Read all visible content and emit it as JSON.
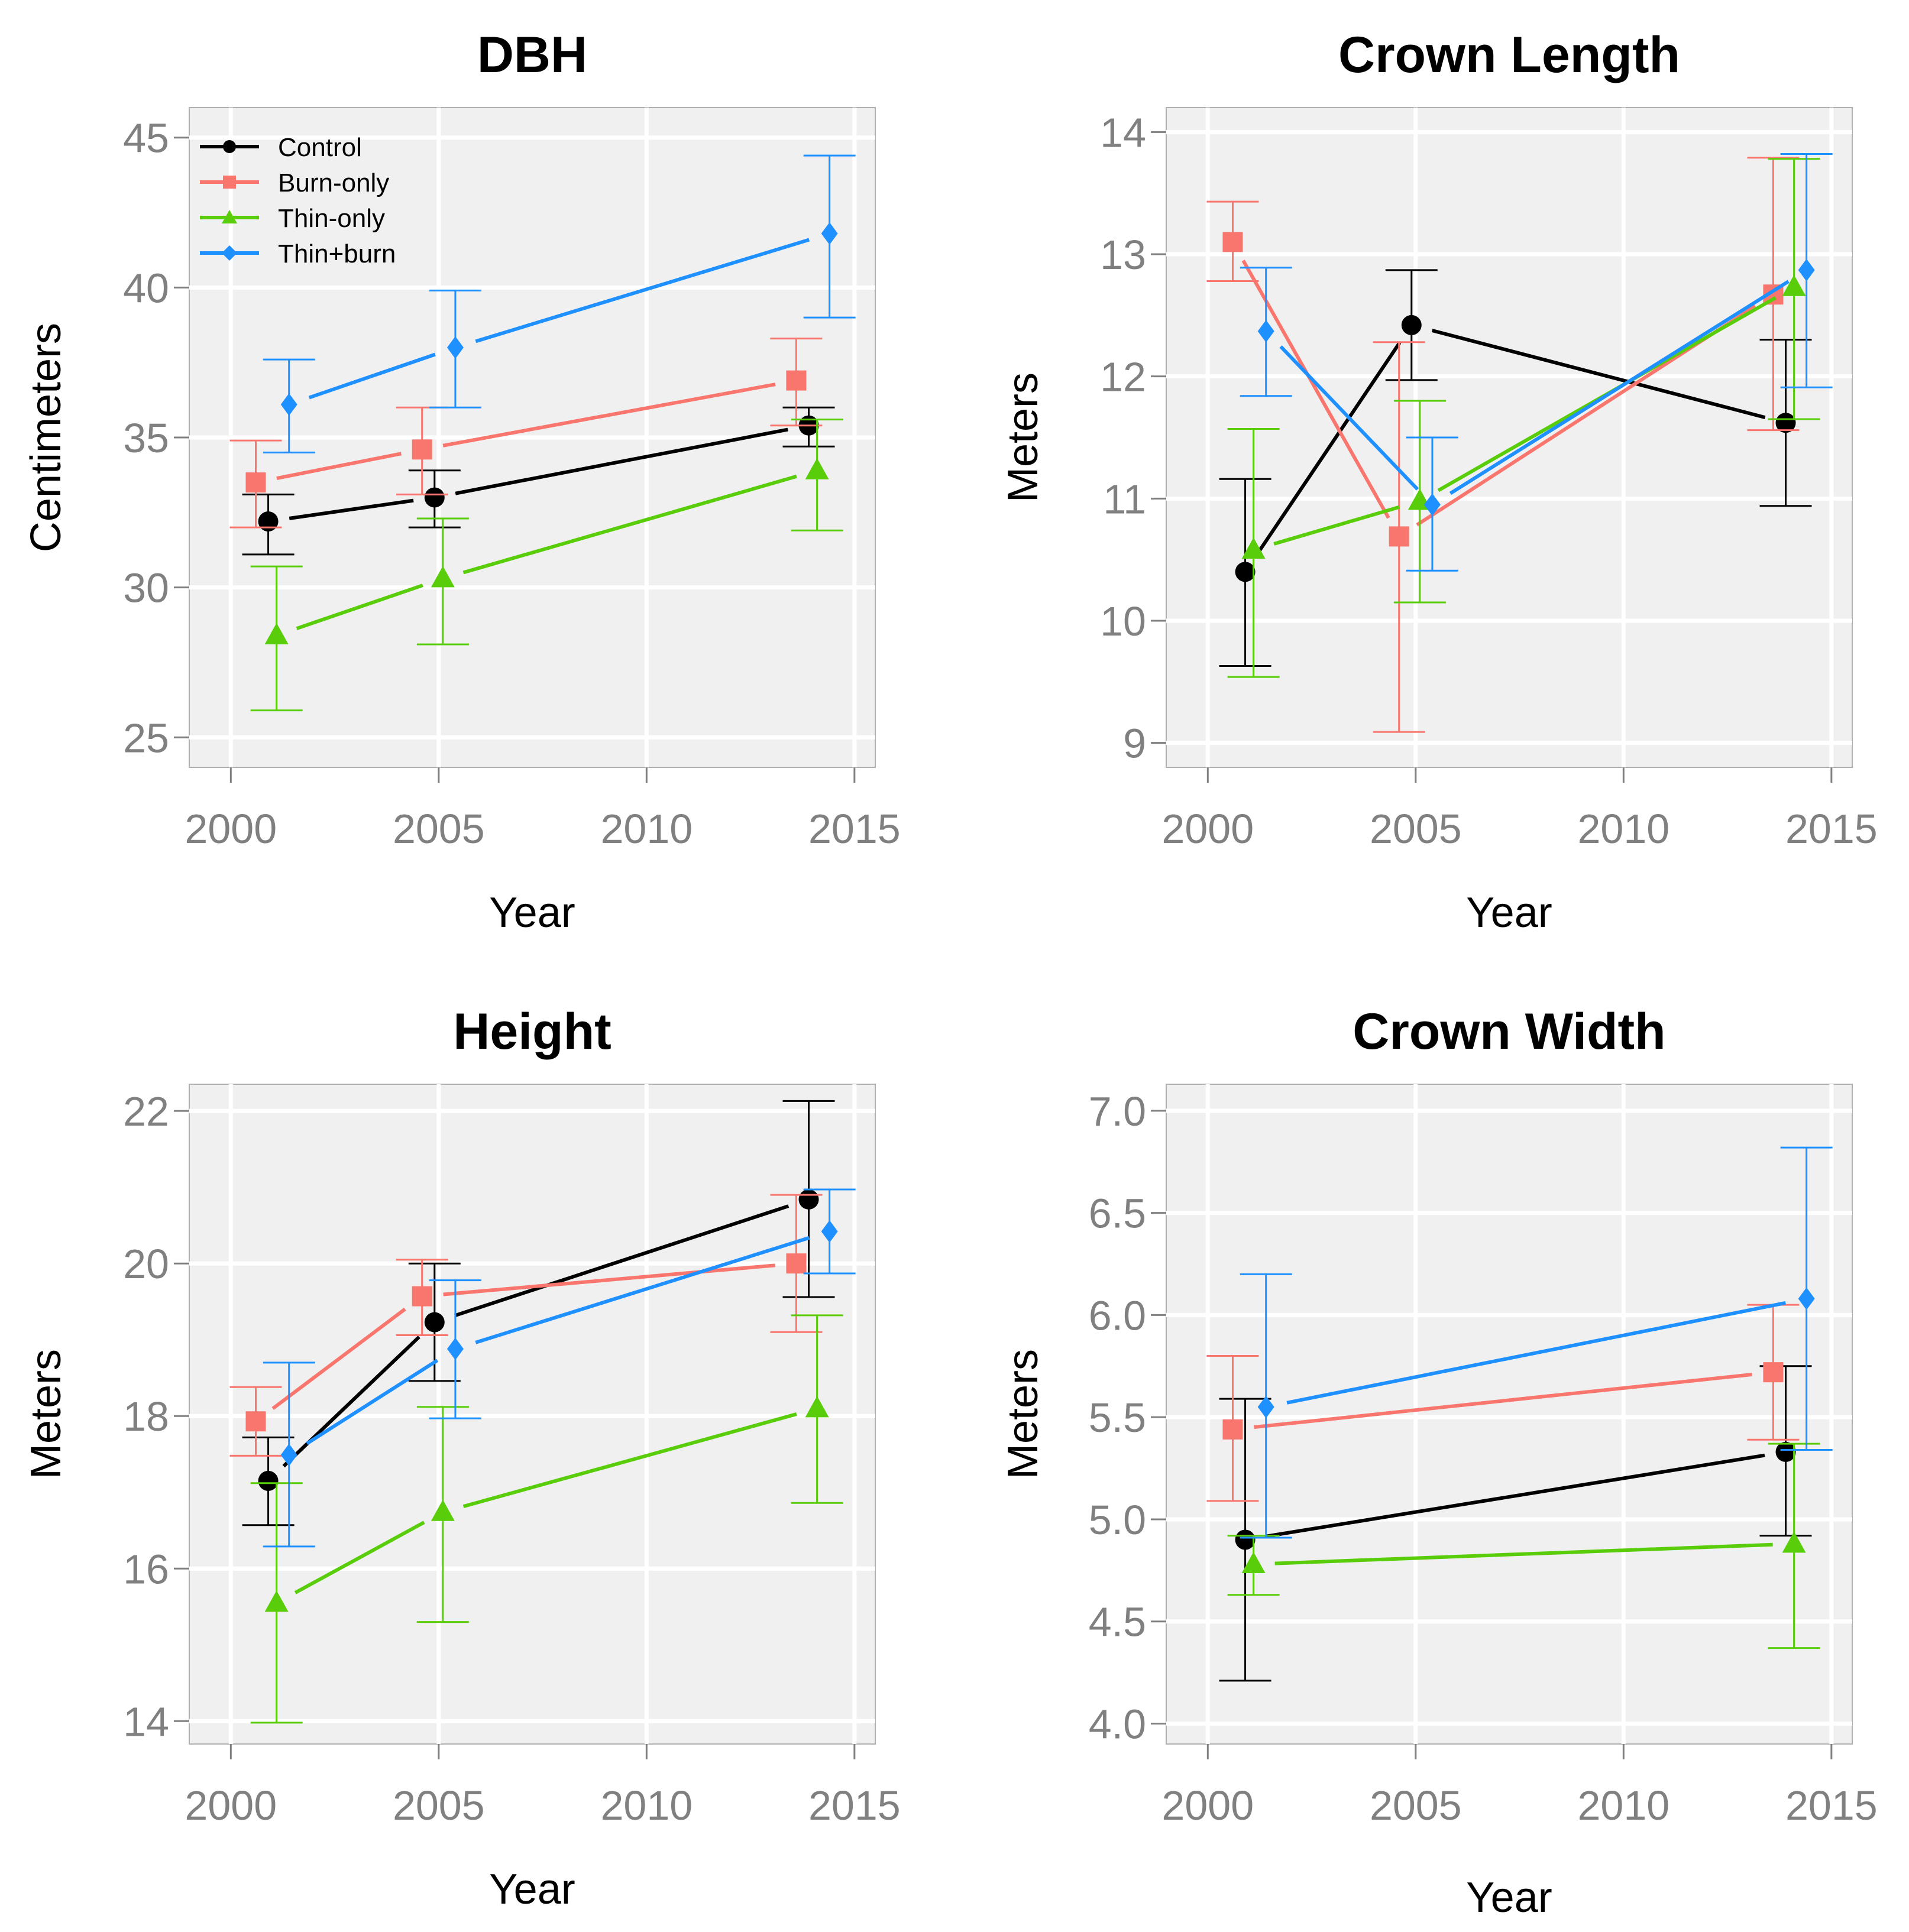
{
  "colors": {
    "Control": "#000000",
    "Burn-only": "#F8766D",
    "Thin-only": "#5ACD0A",
    "Thin+burn": "#1E90FF",
    "panel_bg": "#F0F0F0",
    "grid": "#FFFFFF",
    "tick_text": "#808080"
  },
  "legend": [
    {
      "label": "Control",
      "marker": "circle"
    },
    {
      "label": "Burn-only",
      "marker": "square"
    },
    {
      "label": "Thin-only",
      "marker": "triangle"
    },
    {
      "label": "Thin+burn",
      "marker": "diamond"
    }
  ],
  "chart_data": [
    {
      "type": "line",
      "title": "DBH",
      "xlabel": "Year",
      "ylabel": "Centimeters",
      "xlim": [
        1999,
        2015.5
      ],
      "ylim": [
        24,
        46
      ],
      "xticks": [
        2000,
        2005,
        2010,
        2015
      ],
      "yticks": [
        25,
        30,
        35,
        40,
        45
      ],
      "ytick_labels": [
        "25",
        "30",
        "35",
        "40",
        "45"
      ],
      "legend_position": "top-left",
      "series": [
        {
          "name": "Control",
          "x": [
            2000.9,
            2004.9,
            2013.9
          ],
          "y": [
            32.2,
            33.0,
            35.4
          ],
          "lo": [
            31.1,
            32.0,
            34.7
          ],
          "hi": [
            33.1,
            33.9,
            36.0
          ]
        },
        {
          "name": "Burn-only",
          "x": [
            2000.6,
            2004.6,
            2013.6
          ],
          "y": [
            33.5,
            34.6,
            36.9
          ],
          "lo": [
            32.0,
            33.1,
            35.4
          ],
          "hi": [
            34.9,
            36.0,
            38.3
          ]
        },
        {
          "name": "Thin-only",
          "x": [
            2001.1,
            2005.1,
            2014.1
          ],
          "y": [
            28.4,
            30.3,
            33.9
          ],
          "lo": [
            25.9,
            28.1,
            31.9
          ],
          "hi": [
            30.7,
            32.3,
            35.6
          ]
        },
        {
          "name": "Thin+burn",
          "x": [
            2001.4,
            2005.4,
            2014.4
          ],
          "y": [
            36.1,
            38.0,
            41.8
          ],
          "lo": [
            34.5,
            36.0,
            39.0
          ],
          "hi": [
            37.6,
            39.9,
            44.4
          ]
        }
      ]
    },
    {
      "type": "line",
      "title": "Crown Length",
      "xlabel": "Year",
      "ylabel": "Meters",
      "xlim": [
        1999,
        2015.5
      ],
      "ylim": [
        8.8,
        14.2
      ],
      "xticks": [
        2000,
        2005,
        2010,
        2015
      ],
      "yticks": [
        9,
        10,
        11,
        12,
        13,
        14
      ],
      "ytick_labels": [
        "9",
        "10",
        "11",
        "12",
        "13",
        "14"
      ],
      "legend_position": "none",
      "series": [
        {
          "name": "Control",
          "x": [
            2000.9,
            2004.9,
            2013.9
          ],
          "y": [
            10.4,
            12.42,
            11.62
          ],
          "lo": [
            9.63,
            11.97,
            10.94
          ],
          "hi": [
            11.16,
            12.87,
            12.3
          ]
        },
        {
          "name": "Burn-only",
          "x": [
            2000.6,
            2004.6,
            2013.6
          ],
          "y": [
            13.1,
            10.69,
            12.67
          ],
          "lo": [
            12.78,
            9.09,
            11.56
          ],
          "hi": [
            13.43,
            12.28,
            13.79
          ]
        },
        {
          "name": "Thin-only",
          "x": [
            2001.1,
            2005.1,
            2014.1
          ],
          "y": [
            10.58,
            10.98,
            12.73
          ],
          "lo": [
            9.54,
            10.15,
            11.65
          ],
          "hi": [
            11.57,
            11.8,
            13.78
          ]
        },
        {
          "name": "Thin+burn",
          "x": [
            2001.4,
            2005.4,
            2014.4
          ],
          "y": [
            12.37,
            10.95,
            12.87
          ],
          "lo": [
            11.84,
            10.41,
            11.91
          ],
          "hi": [
            12.89,
            11.5,
            13.82
          ]
        }
      ]
    },
    {
      "type": "line",
      "title": "Height",
      "xlabel": "Year",
      "ylabel": "Meters",
      "xlim": [
        1999,
        2015.5
      ],
      "ylim": [
        13.7,
        22.35
      ],
      "xticks": [
        2000,
        2005,
        2010,
        2015
      ],
      "yticks": [
        14,
        16,
        18,
        20,
        22
      ],
      "ytick_labels": [
        "14",
        "16",
        "18",
        "20",
        "22"
      ],
      "legend_position": "none",
      "series": [
        {
          "name": "Control",
          "x": [
            2000.9,
            2004.9,
            2013.9
          ],
          "y": [
            17.15,
            19.23,
            20.84
          ],
          "lo": [
            16.57,
            18.46,
            19.56
          ],
          "hi": [
            17.72,
            20.0,
            22.13
          ]
        },
        {
          "name": "Burn-only",
          "x": [
            2000.6,
            2004.6,
            2013.6
          ],
          "y": [
            17.93,
            19.57,
            20.0
          ],
          "lo": [
            17.48,
            19.06,
            19.1
          ],
          "hi": [
            18.38,
            20.05,
            20.9
          ]
        },
        {
          "name": "Thin-only",
          "x": [
            2001.1,
            2005.1,
            2014.1
          ],
          "y": [
            15.55,
            16.74,
            18.1
          ],
          "lo": [
            13.98,
            15.3,
            16.86
          ],
          "hi": [
            17.12,
            18.12,
            19.32
          ]
        },
        {
          "name": "Thin+burn",
          "x": [
            2001.4,
            2005.4,
            2014.4
          ],
          "y": [
            17.49,
            18.88,
            20.42
          ],
          "lo": [
            16.29,
            17.97,
            19.87
          ],
          "hi": [
            18.7,
            19.78,
            20.97
          ]
        }
      ]
    },
    {
      "type": "line",
      "title": "Crown Width",
      "xlabel": "Year",
      "ylabel": "Meters",
      "xlim": [
        1999,
        2015.5
      ],
      "ylim": [
        3.9,
        7.13
      ],
      "xticks": [
        2000,
        2005,
        2010,
        2015
      ],
      "yticks": [
        4.0,
        4.5,
        5.0,
        5.5,
        6.0,
        6.5,
        7.0
      ],
      "ytick_labels": [
        "4.0",
        "4.5",
        "5.0",
        "5.5",
        "6.0",
        "6.5",
        "7.0"
      ],
      "legend_position": "none",
      "series": [
        {
          "name": "Control",
          "x": [
            2000.9,
            2013.9
          ],
          "y": [
            4.9,
            5.33
          ],
          "lo": [
            4.21,
            4.92
          ],
          "hi": [
            5.59,
            5.75
          ]
        },
        {
          "name": "Burn-only",
          "x": [
            2000.6,
            2013.6
          ],
          "y": [
            5.44,
            5.72
          ],
          "lo": [
            5.09,
            5.39
          ],
          "hi": [
            5.8,
            6.05
          ]
        },
        {
          "name": "Thin-only",
          "x": [
            2001.1,
            2014.1
          ],
          "y": [
            4.78,
            4.88
          ],
          "lo": [
            4.63,
            4.37
          ],
          "hi": [
            4.92,
            5.37
          ]
        },
        {
          "name": "Thin+burn",
          "x": [
            2001.4,
            2014.4
          ],
          "y": [
            5.55,
            6.08
          ],
          "lo": [
            4.91,
            5.34
          ],
          "hi": [
            6.2,
            6.82
          ]
        }
      ]
    }
  ]
}
